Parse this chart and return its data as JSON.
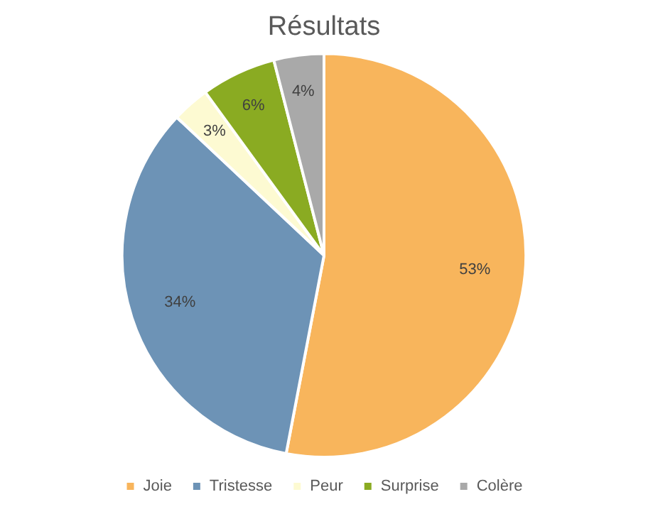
{
  "chart_data": {
    "type": "pie",
    "title": "Résultats",
    "categories": [
      "Joie",
      "Tristesse",
      "Peur",
      "Surprise",
      "Colère"
    ],
    "values": [
      53,
      34,
      3,
      6,
      4
    ],
    "colors": [
      "#f8b55c",
      "#6d93b6",
      "#fdfad2",
      "#8aab22",
      "#a9a9a9"
    ],
    "value_labels": [
      "53%",
      "34%",
      "3%",
      "6%",
      "4%"
    ],
    "legend": "bottom"
  }
}
